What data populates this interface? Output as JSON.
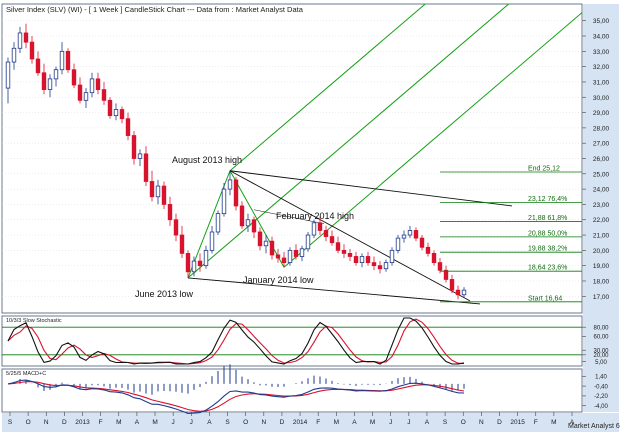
{
  "header": {
    "title": "Silver Index (SLV) (WI) - [ 1 Week ] CandleStick Chart --- Data from : Market Analyst Data"
  },
  "colors": {
    "up": "#1f3a8c",
    "down": "#d8132d",
    "pitchfork": "#12a012",
    "fib": "#0b7a0b",
    "axis_bg": "#d6e3f3",
    "trend": "#101010",
    "grid": "#c8d2e0"
  },
  "annotations": {
    "august_high": "August 2013 high",
    "february_high": "February 2014 high",
    "january_low": "January 2014 low",
    "june_low": "June 2013 low"
  },
  "fib_levels": [
    {
      "label": "End 25,12",
      "value": 25.12
    },
    {
      "label": "23,12 76,4%",
      "value": 23.12
    },
    {
      "label": "21,88 61,8%",
      "value": 21.88
    },
    {
      "label": "20,88 50,0%",
      "value": 20.88
    },
    {
      "label": "19,88 38,2%",
      "value": 19.88
    },
    {
      "label": "18,64 23,6%",
      "value": 18.64
    },
    {
      "label": "Start 16,64",
      "value": 16.64
    }
  ],
  "stoch": {
    "label": "10/3/3 Slow Stochastic",
    "ticks": [
      "80,00",
      "60,00",
      "30,00",
      "20,00",
      "5,00"
    ]
  },
  "macd": {
    "label": "5/25/5 MACD+C",
    "ticks": [
      "1,40",
      "-0,40",
      "-2,20",
      "-4,00"
    ]
  },
  "x_axis": {
    "labels": [
      "S",
      "O",
      "N",
      "D",
      "2013",
      "F",
      "M",
      "A",
      "M",
      "J",
      "J",
      "A",
      "S",
      "O",
      "N",
      "D",
      "2014",
      "F",
      "M",
      "A",
      "M",
      "J",
      "J",
      "A",
      "S",
      "O",
      "N",
      "D",
      "2015",
      "F",
      "M",
      "A"
    ]
  },
  "footer": {
    "label": "Market Analyst 6"
  },
  "chart_data": {
    "type": "candlestick",
    "y_axis": {
      "ticks": [
        "17,00",
        "18,00",
        "19,00",
        "20,00",
        "21,00",
        "22,00",
        "23,00",
        "24,00",
        "25,00",
        "26,00",
        "27,00",
        "28,00",
        "29,00",
        "30,00",
        "31,00",
        "32,00",
        "33,00",
        "34,00",
        "35,00"
      ],
      "ylim": [
        16.3,
        35.7
      ]
    },
    "candles": [
      [
        30.6,
        32.6,
        29.6,
        32.3
      ],
      [
        32.3,
        33.6,
        31.8,
        33.2
      ],
      [
        33.2,
        34.6,
        32.9,
        34.2
      ],
      [
        34.2,
        34.8,
        33.2,
        33.6
      ],
      [
        33.6,
        34.0,
        32.2,
        32.5
      ],
      [
        32.5,
        33.0,
        31.4,
        31.6
      ],
      [
        31.6,
        32.2,
        30.2,
        30.5
      ],
      [
        30.5,
        31.5,
        30.0,
        31.2
      ],
      [
        31.2,
        32.0,
        30.7,
        31.8
      ],
      [
        31.8,
        33.6,
        31.5,
        33.0
      ],
      [
        33.0,
        33.2,
        31.6,
        31.8
      ],
      [
        31.8,
        32.2,
        30.6,
        30.8
      ],
      [
        30.8,
        31.3,
        29.6,
        29.8
      ],
      [
        29.8,
        30.6,
        29.3,
        30.3
      ],
      [
        30.3,
        31.6,
        30.0,
        31.2
      ],
      [
        31.2,
        31.6,
        30.2,
        30.5
      ],
      [
        30.5,
        31.0,
        29.5,
        29.8
      ],
      [
        29.8,
        30.0,
        28.6,
        28.8
      ],
      [
        28.8,
        29.6,
        28.5,
        29.2
      ],
      [
        29.2,
        29.4,
        28.3,
        28.6
      ],
      [
        28.6,
        29.0,
        27.2,
        27.5
      ],
      [
        27.5,
        27.8,
        25.6,
        26.0
      ],
      [
        26.0,
        26.6,
        25.5,
        26.3
      ],
      [
        26.3,
        26.8,
        24.2,
        24.5
      ],
      [
        24.5,
        25.2,
        23.2,
        23.5
      ],
      [
        23.5,
        24.6,
        23.0,
        24.2
      ],
      [
        24.2,
        24.5,
        22.7,
        23.0
      ],
      [
        23.0,
        23.5,
        21.6,
        22.0
      ],
      [
        22.0,
        22.4,
        20.6,
        21.0
      ],
      [
        21.0,
        21.6,
        19.5,
        19.8
      ],
      [
        19.8,
        20.0,
        18.2,
        18.6
      ],
      [
        18.6,
        19.6,
        18.3,
        19.3
      ],
      [
        19.3,
        19.8,
        18.6,
        19.0
      ],
      [
        19.0,
        20.3,
        18.8,
        20.0
      ],
      [
        20.0,
        21.6,
        19.8,
        21.2
      ],
      [
        21.2,
        22.6,
        21.0,
        22.4
      ],
      [
        22.4,
        24.4,
        22.2,
        24.0
      ],
      [
        24.0,
        25.2,
        23.6,
        24.6
      ],
      [
        24.6,
        24.8,
        22.6,
        22.9
      ],
      [
        22.9,
        23.2,
        21.4,
        21.6
      ],
      [
        21.6,
        22.4,
        21.2,
        22.0
      ],
      [
        22.0,
        22.2,
        20.8,
        21.2
      ],
      [
        21.2,
        21.5,
        20.0,
        20.3
      ],
      [
        20.3,
        21.0,
        19.8,
        20.6
      ],
      [
        20.6,
        20.9,
        19.4,
        19.7
      ],
      [
        19.7,
        20.1,
        19.2,
        19.5
      ],
      [
        19.5,
        19.9,
        18.9,
        19.2
      ],
      [
        19.2,
        20.2,
        19.0,
        20.0
      ],
      [
        20.0,
        20.4,
        19.4,
        19.6
      ],
      [
        19.6,
        20.3,
        19.3,
        20.1
      ],
      [
        20.1,
        21.2,
        19.9,
        21.0
      ],
      [
        21.0,
        22.0,
        20.8,
        21.8
      ],
      [
        21.8,
        22.2,
        21.0,
        21.3
      ],
      [
        21.3,
        21.6,
        20.6,
        20.9
      ],
      [
        20.9,
        21.3,
        20.3,
        20.5
      ],
      [
        20.5,
        20.9,
        19.8,
        20.0
      ],
      [
        20.0,
        20.4,
        19.5,
        19.8
      ],
      [
        19.8,
        20.1,
        19.3,
        19.6
      ],
      [
        19.6,
        19.9,
        19.0,
        19.2
      ],
      [
        19.2,
        19.8,
        18.9,
        19.6
      ],
      [
        19.6,
        19.9,
        19.0,
        19.2
      ],
      [
        19.2,
        19.6,
        18.7,
        19.0
      ],
      [
        19.0,
        19.3,
        18.5,
        18.8
      ],
      [
        18.8,
        19.4,
        18.6,
        19.2
      ],
      [
        19.2,
        20.2,
        19.0,
        20.0
      ],
      [
        20.0,
        21.0,
        19.8,
        20.8
      ],
      [
        20.8,
        21.3,
        20.5,
        21.0
      ],
      [
        21.0,
        21.6,
        20.8,
        21.3
      ],
      [
        21.3,
        21.5,
        20.6,
        20.8
      ],
      [
        20.8,
        21.0,
        20.0,
        20.2
      ],
      [
        20.2,
        20.5,
        19.6,
        19.8
      ],
      [
        19.8,
        20.0,
        19.0,
        19.2
      ],
      [
        19.2,
        19.5,
        18.5,
        18.7
      ],
      [
        18.7,
        19.0,
        17.9,
        18.1
      ],
      [
        18.1,
        18.4,
        17.2,
        17.4
      ],
      [
        17.4,
        17.7,
        16.8,
        17.1
      ],
      [
        17.1,
        17.6,
        16.9,
        17.4
      ]
    ]
  }
}
